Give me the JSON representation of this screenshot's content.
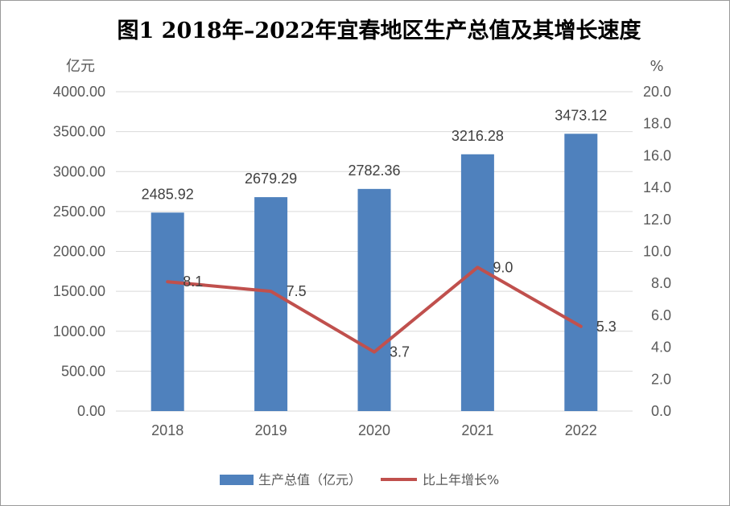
{
  "chart_data": {
    "type": "bar",
    "title": "图1  2018年–2022年宜春地区生产总值及其增长速度",
    "categories": [
      "2018",
      "2019",
      "2020",
      "2021",
      "2022"
    ],
    "y_left_unit": "亿元",
    "y_right_unit": "%",
    "y_left_range": [
      0,
      4000
    ],
    "y_left_ticks": [
      "0.00",
      "500.00",
      "1000.00",
      "1500.00",
      "2000.00",
      "2500.00",
      "3000.00",
      "3500.00",
      "4000.00"
    ],
    "y_right_range": [
      0,
      20
    ],
    "y_right_ticks": [
      "0.0",
      "2.0",
      "4.0",
      "6.0",
      "8.0",
      "10.0",
      "12.0",
      "14.0",
      "16.0",
      "18.0",
      "20.0"
    ],
    "grid": true,
    "legend_position": "bottom",
    "series": [
      {
        "name": "生产总值（亿元）",
        "type": "bar",
        "axis": "left",
        "color": "#4f81bd",
        "values": [
          2485.92,
          2679.29,
          2782.36,
          3216.28,
          3473.12
        ],
        "labels": [
          "2485.92",
          "2679.29",
          "2782.36",
          "3216.28",
          "3473.12"
        ]
      },
      {
        "name": "比上年增长%",
        "type": "line",
        "axis": "right",
        "color": "#c0504d",
        "values": [
          8.1,
          7.5,
          3.7,
          9.0,
          5.3
        ],
        "labels": [
          "8.1",
          "7.5",
          "3.7",
          "9.0",
          "5.3"
        ]
      }
    ]
  }
}
